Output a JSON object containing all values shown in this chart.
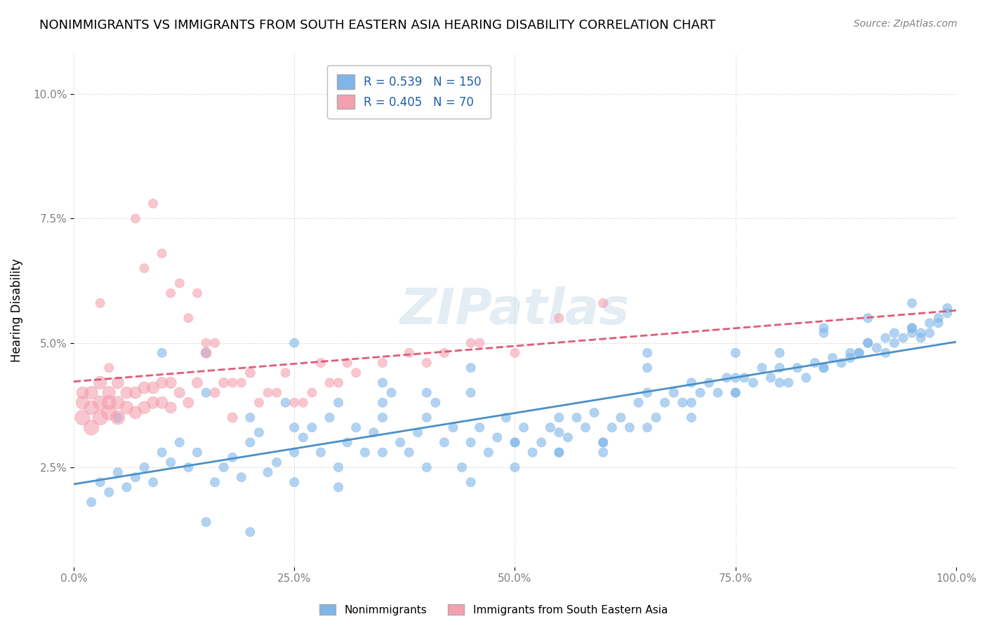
{
  "title": "NONIMMIGRANTS VS IMMIGRANTS FROM SOUTH EASTERN ASIA HEARING DISABILITY CORRELATION CHART",
  "source": "Source: ZipAtlas.com",
  "ylabel": "Hearing Disability",
  "xlabel": "",
  "watermark": "ZIPatlas",
  "xlim": [
    0.0,
    1.0
  ],
  "ylim": [
    0.008,
    0.105
  ],
  "yticks": [
    0.025,
    0.05,
    0.075,
    0.1
  ],
  "ytick_labels": [
    "2.5%",
    "5.0%",
    "7.5%",
    "10.0%"
  ],
  "xticks": [
    0.0,
    0.25,
    0.5,
    0.75,
    1.0
  ],
  "xtick_labels": [
    "0.0%",
    "25.0%",
    "50.0%",
    "75.0%",
    "100.0%"
  ],
  "blue_R": 0.539,
  "blue_N": 150,
  "pink_R": 0.405,
  "pink_N": 70,
  "blue_color": "#7EB6E8",
  "pink_color": "#F4A0B0",
  "blue_line_color": "#4A90C8",
  "pink_line_color": "#E05A78",
  "title_fontsize": 13,
  "source_fontsize": 10,
  "legend_label_blue": "Nonimmigrants",
  "legend_label_pink": "Immigrants from South Eastern Asia",
  "blue_scatter": {
    "x": [
      0.02,
      0.03,
      0.04,
      0.05,
      0.06,
      0.07,
      0.08,
      0.09,
      0.1,
      0.11,
      0.12,
      0.13,
      0.14,
      0.15,
      0.16,
      0.17,
      0.18,
      0.19,
      0.2,
      0.21,
      0.22,
      0.23,
      0.24,
      0.25,
      0.26,
      0.27,
      0.28,
      0.29,
      0.3,
      0.31,
      0.32,
      0.33,
      0.34,
      0.35,
      0.36,
      0.37,
      0.38,
      0.39,
      0.4,
      0.41,
      0.42,
      0.43,
      0.44,
      0.45,
      0.46,
      0.47,
      0.48,
      0.49,
      0.5,
      0.51,
      0.52,
      0.53,
      0.54,
      0.55,
      0.56,
      0.57,
      0.58,
      0.59,
      0.6,
      0.61,
      0.62,
      0.63,
      0.64,
      0.65,
      0.66,
      0.67,
      0.68,
      0.69,
      0.7,
      0.71,
      0.72,
      0.73,
      0.74,
      0.75,
      0.76,
      0.77,
      0.78,
      0.79,
      0.8,
      0.81,
      0.82,
      0.83,
      0.84,
      0.85,
      0.86,
      0.87,
      0.88,
      0.89,
      0.9,
      0.91,
      0.92,
      0.93,
      0.94,
      0.95,
      0.96,
      0.97,
      0.98,
      0.99,
      0.15,
      0.2,
      0.25,
      0.3,
      0.35,
      0.4,
      0.45,
      0.5,
      0.55,
      0.6,
      0.65,
      0.7,
      0.75,
      0.8,
      0.85,
      0.9,
      0.95,
      0.1,
      0.2,
      0.3,
      0.4,
      0.5,
      0.6,
      0.7,
      0.8,
      0.9,
      0.25,
      0.35,
      0.45,
      0.55,
      0.65,
      0.75,
      0.85,
      0.95,
      0.05,
      0.15,
      0.25,
      0.35,
      0.45,
      0.55,
      0.65,
      0.75,
      0.85,
      0.95,
      0.92,
      0.93,
      0.96,
      0.97,
      0.98,
      0.99,
      0.88,
      0.89
    ],
    "y": [
      0.018,
      0.022,
      0.02,
      0.024,
      0.021,
      0.023,
      0.025,
      0.022,
      0.028,
      0.026,
      0.03,
      0.025,
      0.028,
      0.048,
      0.022,
      0.025,
      0.027,
      0.023,
      0.03,
      0.032,
      0.024,
      0.026,
      0.038,
      0.028,
      0.031,
      0.033,
      0.028,
      0.035,
      0.025,
      0.03,
      0.033,
      0.028,
      0.032,
      0.035,
      0.04,
      0.03,
      0.028,
      0.032,
      0.035,
      0.038,
      0.03,
      0.033,
      0.025,
      0.03,
      0.033,
      0.028,
      0.031,
      0.035,
      0.03,
      0.033,
      0.028,
      0.03,
      0.033,
      0.028,
      0.031,
      0.035,
      0.033,
      0.036,
      0.03,
      0.033,
      0.035,
      0.033,
      0.038,
      0.04,
      0.035,
      0.038,
      0.04,
      0.038,
      0.042,
      0.04,
      0.042,
      0.04,
      0.043,
      0.04,
      0.043,
      0.042,
      0.045,
      0.043,
      0.045,
      0.042,
      0.045,
      0.043,
      0.046,
      0.045,
      0.047,
      0.046,
      0.048,
      0.048,
      0.05,
      0.049,
      0.051,
      0.052,
      0.051,
      0.053,
      0.052,
      0.054,
      0.055,
      0.056,
      0.014,
      0.012,
      0.022,
      0.021,
      0.028,
      0.025,
      0.022,
      0.025,
      0.028,
      0.03,
      0.033,
      0.038,
      0.04,
      0.042,
      0.045,
      0.05,
      0.052,
      0.048,
      0.035,
      0.038,
      0.04,
      0.03,
      0.028,
      0.035,
      0.048,
      0.055,
      0.033,
      0.042,
      0.04,
      0.035,
      0.048,
      0.043,
      0.052,
      0.053,
      0.035,
      0.04,
      0.05,
      0.038,
      0.045,
      0.032,
      0.045,
      0.048,
      0.053,
      0.058,
      0.048,
      0.05,
      0.051,
      0.052,
      0.054,
      0.057,
      0.047,
      0.048
    ],
    "sizes": [
      30,
      30,
      30,
      30,
      30,
      30,
      30,
      30,
      30,
      30,
      30,
      30,
      30,
      30,
      30,
      30,
      30,
      30,
      30,
      30,
      30,
      30,
      30,
      30,
      30,
      30,
      30,
      30,
      30,
      30,
      30,
      30,
      30,
      30,
      30,
      30,
      30,
      30,
      30,
      30,
      30,
      30,
      30,
      30,
      30,
      30,
      30,
      30,
      30,
      30,
      30,
      30,
      30,
      30,
      30,
      30,
      30,
      30,
      30,
      30,
      30,
      30,
      30,
      30,
      30,
      30,
      30,
      30,
      30,
      30,
      30,
      30,
      30,
      30,
      30,
      30,
      30,
      30,
      30,
      30,
      30,
      30,
      30,
      30,
      30,
      30,
      30,
      30,
      30,
      30,
      30,
      30,
      30,
      30,
      30,
      30,
      30,
      30,
      30,
      30,
      30,
      30,
      30,
      30,
      30,
      30,
      30,
      30,
      30,
      30,
      30,
      30,
      30,
      30,
      30,
      30,
      30,
      30,
      30,
      30,
      30,
      30,
      30,
      30,
      30,
      30,
      30,
      30,
      30,
      30,
      30,
      30,
      30,
      30,
      30,
      30,
      30,
      30,
      30,
      30,
      30,
      30,
      30,
      30,
      30,
      30,
      30,
      30,
      30,
      30
    ]
  },
  "pink_scatter": {
    "x": [
      0.01,
      0.01,
      0.01,
      0.02,
      0.02,
      0.02,
      0.03,
      0.03,
      0.03,
      0.04,
      0.04,
      0.04,
      0.05,
      0.05,
      0.05,
      0.06,
      0.06,
      0.07,
      0.07,
      0.08,
      0.08,
      0.09,
      0.09,
      0.1,
      0.1,
      0.11,
      0.11,
      0.12,
      0.13,
      0.14,
      0.15,
      0.16,
      0.17,
      0.18,
      0.2,
      0.22,
      0.24,
      0.26,
      0.28,
      0.3,
      0.32,
      0.35,
      0.38,
      0.42,
      0.46,
      0.5,
      0.55,
      0.6,
      0.4,
      0.45,
      0.25,
      0.27,
      0.29,
      0.31,
      0.19,
      0.21,
      0.23,
      0.13,
      0.15,
      0.07,
      0.08,
      0.09,
      0.1,
      0.11,
      0.12,
      0.14,
      0.16,
      0.18,
      0.03,
      0.04
    ],
    "y": [
      0.035,
      0.038,
      0.04,
      0.033,
      0.037,
      0.04,
      0.035,
      0.038,
      0.042,
      0.036,
      0.038,
      0.04,
      0.035,
      0.038,
      0.042,
      0.037,
      0.04,
      0.036,
      0.04,
      0.037,
      0.041,
      0.038,
      0.041,
      0.038,
      0.042,
      0.037,
      0.042,
      0.04,
      0.038,
      0.042,
      0.048,
      0.04,
      0.042,
      0.035,
      0.044,
      0.04,
      0.044,
      0.038,
      0.046,
      0.042,
      0.044,
      0.046,
      0.048,
      0.048,
      0.05,
      0.048,
      0.055,
      0.058,
      0.046,
      0.05,
      0.038,
      0.04,
      0.042,
      0.046,
      0.042,
      0.038,
      0.04,
      0.055,
      0.05,
      0.075,
      0.065,
      0.078,
      0.068,
      0.06,
      0.062,
      0.06,
      0.05,
      0.042,
      0.058,
      0.045
    ],
    "sizes": [
      80,
      60,
      50,
      80,
      70,
      60,
      80,
      70,
      60,
      80,
      70,
      60,
      70,
      60,
      50,
      60,
      50,
      55,
      50,
      55,
      50,
      50,
      50,
      50,
      45,
      45,
      45,
      40,
      40,
      40,
      40,
      35,
      35,
      35,
      35,
      30,
      30,
      30,
      30,
      30,
      30,
      30,
      30,
      30,
      30,
      30,
      30,
      30,
      30,
      30,
      30,
      30,
      30,
      30,
      30,
      30,
      30,
      30,
      30,
      30,
      30,
      30,
      30,
      30,
      30,
      30,
      30,
      30,
      30,
      30
    ]
  }
}
